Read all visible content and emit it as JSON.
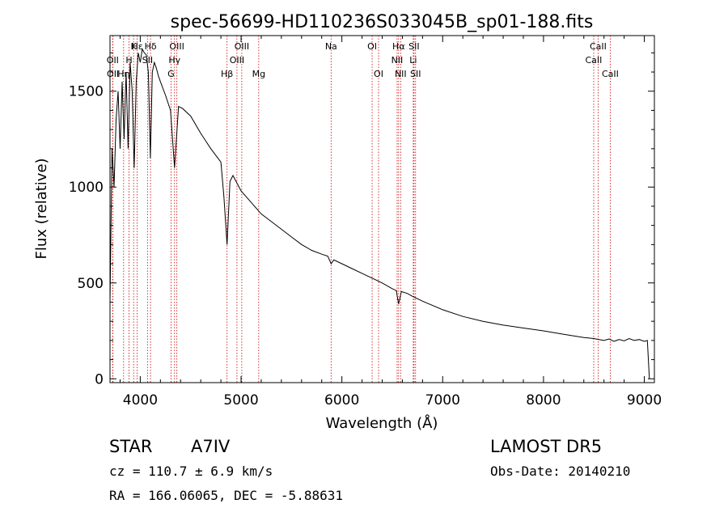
{
  "chart_data": {
    "type": "line",
    "title": "spec-56699-HD110236S033045B_sp01-188.fits",
    "xlabel": "Wavelength (Å)",
    "ylabel": "Flux (relative)",
    "xlim": [
      3700,
      9100
    ],
    "ylim": [
      -20,
      1790
    ],
    "xticks": [
      4000,
      5000,
      6000,
      7000,
      8000,
      9000
    ],
    "yticks": [
      0,
      500,
      1000,
      1500
    ],
    "line_color": "#000000",
    "marker_color": "#cc0000",
    "grid": false,
    "series": [
      {
        "x": [
          3700,
          3720,
          3740,
          3760,
          3780,
          3800,
          3820,
          3840,
          3860,
          3880,
          3900,
          3920,
          3940,
          3960,
          3980,
          4000,
          4020,
          4040,
          4060,
          4080,
          4100,
          4120,
          4140,
          4160,
          4180,
          4200,
          4250,
          4300,
          4340,
          4380,
          4420,
          4500,
          4600,
          4700,
          4800,
          4830,
          4861,
          4890,
          4920,
          4950,
          5000,
          5100,
          5200,
          5300,
          5400,
          5500,
          5600,
          5700,
          5800,
          5860,
          5893,
          5920,
          6000,
          6100,
          6200,
          6300,
          6400,
          6500,
          6540,
          6563,
          6590,
          6650,
          6700,
          6800,
          7000,
          7200,
          7400,
          7600,
          7800,
          8000,
          8200,
          8400,
          8500,
          8550,
          8600,
          8650,
          8700,
          8750,
          8800,
          8850,
          8900,
          8950,
          9000,
          9030,
          9050
        ],
        "y": [
          400,
          1200,
          1000,
          1350,
          1500,
          1200,
          1550,
          1250,
          1600,
          1200,
          1650,
          1500,
          1100,
          1550,
          1700,
          1650,
          1720,
          1700,
          1690,
          1600,
          1150,
          1600,
          1650,
          1620,
          1580,
          1550,
          1480,
          1400,
          1100,
          1420,
          1410,
          1370,
          1280,
          1200,
          1130,
          950,
          700,
          1030,
          1060,
          1030,
          980,
          920,
          860,
          820,
          780,
          740,
          700,
          670,
          650,
          640,
          600,
          620,
          600,
          575,
          550,
          525,
          500,
          470,
          460,
          390,
          455,
          445,
          430,
          405,
          360,
          325,
          300,
          280,
          265,
          250,
          232,
          215,
          210,
          205,
          200,
          208,
          195,
          205,
          198,
          210,
          200,
          205,
          195,
          200,
          0
        ]
      }
    ],
    "line_markers": [
      {
        "label": "Hε",
        "x": 3970,
        "row": 0
      },
      {
        "label": "K",
        "x": 3934,
        "row": 0
      },
      {
        "label": "Hδ",
        "x": 4102,
        "row": 0
      },
      {
        "label": "OIII",
        "x": 4363,
        "row": 0
      },
      {
        "label": "OIII",
        "x": 5007,
        "row": 0
      },
      {
        "label": "OI",
        "x": 6300,
        "row": 0
      },
      {
        "label": "Hα",
        "x": 6563,
        "row": 0
      },
      {
        "label": "SII",
        "x": 6716,
        "row": 0
      },
      {
        "label": "CaII",
        "x": 8542,
        "row": 0
      },
      {
        "label": "OII",
        "x": 3727,
        "row": 1
      },
      {
        "label": "H",
        "x": 3889,
        "row": 1
      },
      {
        "label": "SII",
        "x": 4072,
        "row": 1
      },
      {
        "label": "Hγ",
        "x": 4340,
        "row": 1
      },
      {
        "label": "OIII",
        "x": 4959,
        "row": 1
      },
      {
        "label": "NII",
        "x": 6548,
        "row": 1
      },
      {
        "label": "Li",
        "x": 6708,
        "row": 1
      },
      {
        "label": "CaII",
        "x": 8498,
        "row": 1
      },
      {
        "label": "OII",
        "x": 3729,
        "row": 2
      },
      {
        "label": "Hη",
        "x": 3835,
        "row": 2
      },
      {
        "label": "G",
        "x": 4305,
        "row": 2
      },
      {
        "label": "Hβ",
        "x": 4861,
        "row": 2
      },
      {
        "label": "Mg",
        "x": 5175,
        "row": 2
      },
      {
        "label": "Na",
        "x": 5893,
        "row": 0
      },
      {
        "label": "OI",
        "x": 6364,
        "row": 2
      },
      {
        "label": "NII",
        "x": 6583,
        "row": 2
      },
      {
        "label": "SII",
        "x": 6731,
        "row": 2
      },
      {
        "label": "CaII",
        "x": 8662,
        "row": 2
      }
    ]
  },
  "info": {
    "object_type": "STAR",
    "subclass": "A7IV",
    "survey": "LAMOST DR5",
    "cz_label": "cz = 110.7 ± 6.9 km/s",
    "obs_date": "Obs-Date: 20140210",
    "coords": "RA = 166.06065, DEC =  -5.88631"
  }
}
